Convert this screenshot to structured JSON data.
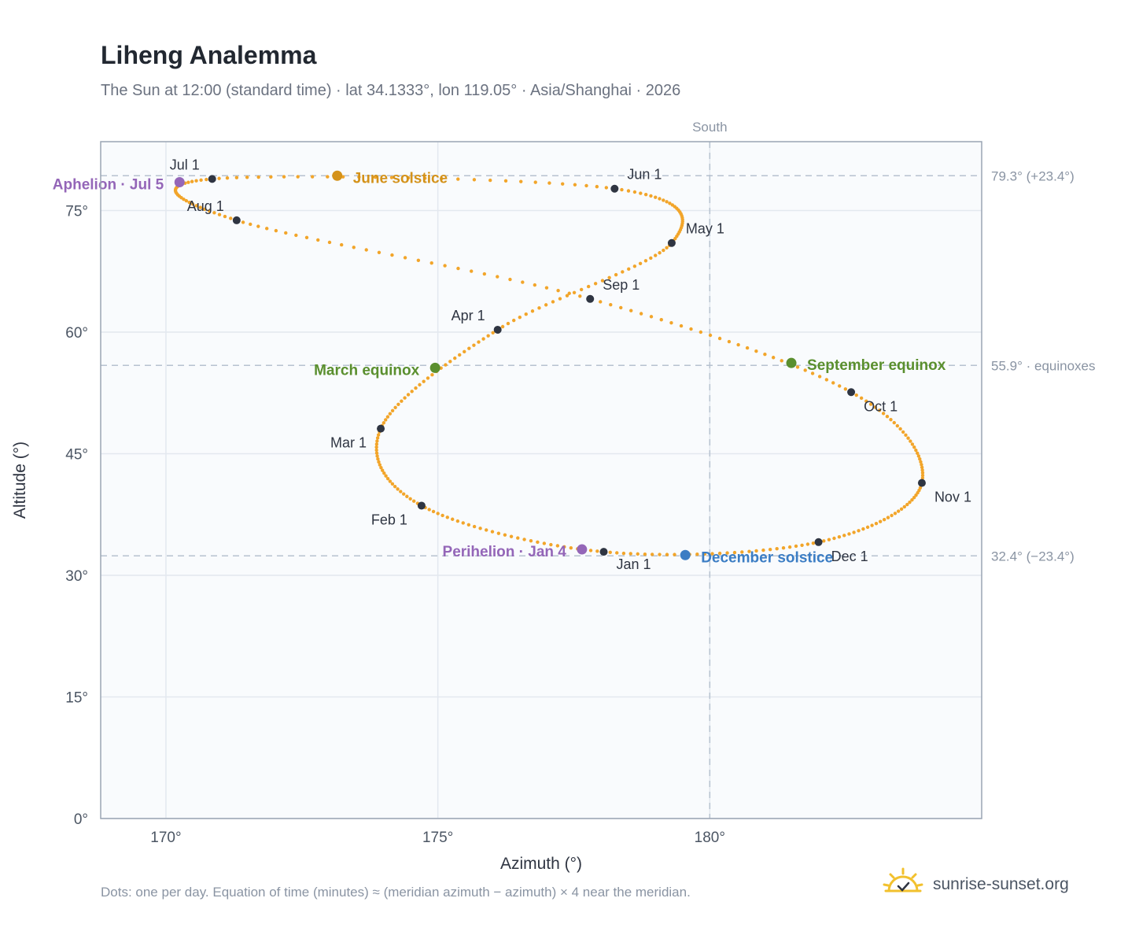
{
  "header": {
    "title": "Liheng Analemma",
    "subtitle": "The Sun at 12:00 (standard time) · lat 34.1333°, lon 119.05° · Asia/Shanghai · 2026"
  },
  "footer": {
    "note": "Dots: one per day. Equation of time (minutes) ≈ (meridian azimuth − azimuth) × 4 near the meridian.",
    "brand": "sunrise-sunset.org",
    "brand_icon": "sun-logo-icon"
  },
  "colors": {
    "curve": "#f2a52a",
    "month_marker": "#2f3542",
    "equinox": "#5a8f2e",
    "june_solstice": "#d4921a",
    "december_solstice": "#3b7dc4",
    "aphelion_perihelion": "#9466b8",
    "plot_bg": "#f9fbfd"
  },
  "chart_data": {
    "type": "scatter",
    "xlabel": "Azimuth (°)",
    "ylabel": "Altitude (°)",
    "xlim": [
      168.8,
      185.0
    ],
    "ylim": [
      0,
      83.5
    ],
    "xticks": [
      170,
      175,
      180
    ],
    "xtick_labels": [
      "170°",
      "175°",
      "180°"
    ],
    "yticks": [
      0,
      15,
      30,
      45,
      60,
      75
    ],
    "ytick_labels": [
      "0°",
      "15°",
      "30°",
      "45°",
      "60°",
      "75°"
    ],
    "grid": true,
    "meridian": {
      "azimuth": 180,
      "label": "South"
    },
    "reference_lines": [
      {
        "altitude": 79.3,
        "label": "79.3° (+23.4°)"
      },
      {
        "altitude": 55.9,
        "label": "55.9° · equinoxes"
      },
      {
        "altitude": 32.4,
        "label": "32.4° (−23.4°)"
      }
    ],
    "month_markers": [
      {
        "label": "Jan 1",
        "az": 178.05,
        "alt": 32.9
      },
      {
        "label": "Feb 1",
        "az": 174.7,
        "alt": 38.6
      },
      {
        "label": "Mar 1",
        "az": 173.95,
        "alt": 48.1
      },
      {
        "label": "Apr 1",
        "az": 176.1,
        "alt": 60.3
      },
      {
        "label": "May 1",
        "az": 179.3,
        "alt": 71.0
      },
      {
        "label": "Jun 1",
        "az": 178.25,
        "alt": 77.7
      },
      {
        "label": "Jul 1",
        "az": 170.85,
        "alt": 78.9
      },
      {
        "label": "Aug 1",
        "az": 171.3,
        "alt": 73.8
      },
      {
        "label": "Sep 1",
        "az": 177.8,
        "alt": 64.1
      },
      {
        "label": "Oct 1",
        "az": 182.6,
        "alt": 52.6
      },
      {
        "label": "Nov 1",
        "az": 183.9,
        "alt": 41.4
      },
      {
        "label": "Dec 1",
        "az": 182.0,
        "alt": 34.1
      }
    ],
    "events": [
      {
        "label": "March equinox",
        "az": 174.95,
        "alt": 55.6,
        "kind": "equinox"
      },
      {
        "label": "June solstice",
        "az": 173.15,
        "alt": 79.3,
        "kind": "june_solstice"
      },
      {
        "label": "September equinox",
        "az": 181.5,
        "alt": 56.2,
        "kind": "equinox"
      },
      {
        "label": "December solstice",
        "az": 179.55,
        "alt": 32.5,
        "kind": "december_solstice"
      },
      {
        "label": "Aphelion · Jul 5",
        "az": 170.25,
        "alt": 78.5,
        "kind": "aphelion_perihelion"
      },
      {
        "label": "Perihelion · Jan 4",
        "az": 177.65,
        "alt": 33.2,
        "kind": "aphelion_perihelion"
      }
    ]
  }
}
